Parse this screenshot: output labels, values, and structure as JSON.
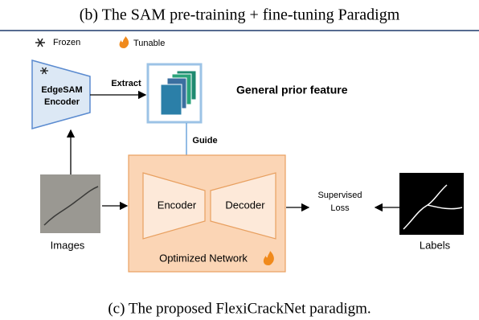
{
  "previous_caption": "(b) The SAM pre-training + fine-tuning Paradigm",
  "legend": {
    "frozen": "Frozen",
    "tunable": "Tunable"
  },
  "nodes": {
    "edgesam": {
      "lines": [
        "EdgeSAM",
        "Encoder"
      ]
    },
    "prior_feature": {
      "label": "General prior feature"
    },
    "encoder": {
      "label": "Encoder"
    },
    "decoder": {
      "label": "Decoder"
    },
    "network": {
      "label": "Optimized Network"
    },
    "images": {
      "label": "Images"
    },
    "labels": {
      "label": "Labels"
    },
    "loss": {
      "lines": [
        "Supervised",
        "Loss"
      ]
    }
  },
  "edges": {
    "extract": "Extract",
    "guide": "Guide"
  },
  "caption": "(c) The proposed FlexiCrackNet paradigm."
}
